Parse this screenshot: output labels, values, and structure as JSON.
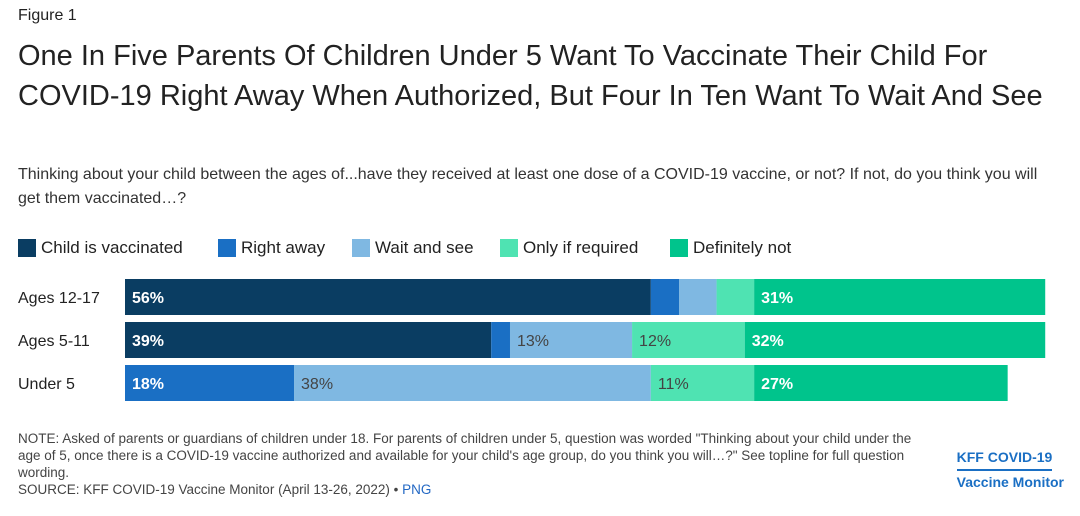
{
  "figure_label": "Figure 1",
  "chart_data": {
    "type": "bar",
    "orientation": "horizontal",
    "stacked": true,
    "title": "One In Five Parents Of Children Under 5 Want To Vaccinate Their Child For COVID-19 Right Away When Authorized, But Four In Ten Want To Wait And See",
    "subtitle": "Thinking about your child between the ages of...have they received at least one dose of a COVID-19 vaccine, or not? If not, do you think you will get them vaccinated…?",
    "categories": [
      "Ages 12-17",
      "Ages 5-11",
      "Under 5"
    ],
    "series": [
      {
        "name": "Child is vaccinated",
        "color": "#0a3d62",
        "values": [
          56,
          39,
          0
        ],
        "labels": [
          "56%",
          "39%",
          ""
        ]
      },
      {
        "name": "Right away",
        "color": "#1a6fc4",
        "values": [
          3,
          2,
          18
        ],
        "labels": [
          "",
          "",
          "18%"
        ]
      },
      {
        "name": "Wait and see",
        "color": "#7fb8e2",
        "values": [
          4,
          13,
          38
        ],
        "labels": [
          "",
          "13%",
          "38%"
        ]
      },
      {
        "name": "Only if required",
        "color": "#4fe3b2",
        "values": [
          4,
          12,
          11
        ],
        "labels": [
          "",
          "12%",
          "11%"
        ]
      },
      {
        "name": "Definitely not",
        "color": "#00c48c",
        "values": [
          31,
          32,
          27
        ],
        "labels": [
          "31%",
          "32%",
          "27%"
        ]
      }
    ],
    "xlim": [
      0,
      100
    ]
  },
  "note": "NOTE: Asked of parents or guardians of children under 18. For parents of children under 5, question was worded \"Thinking about your child under the age of 5, once there is a COVID-19 vaccine authorized and available for your child's age group, do you think you will…?\" See topline for full question wording.",
  "source": "SOURCE: KFF COVID-19 Vaccine Monitor (April 13-26, 2022)",
  "source_sep": " • ",
  "png_link": "PNG",
  "brand": {
    "line1": "KFF COVID-19",
    "line2": "Vaccine Monitor"
  }
}
